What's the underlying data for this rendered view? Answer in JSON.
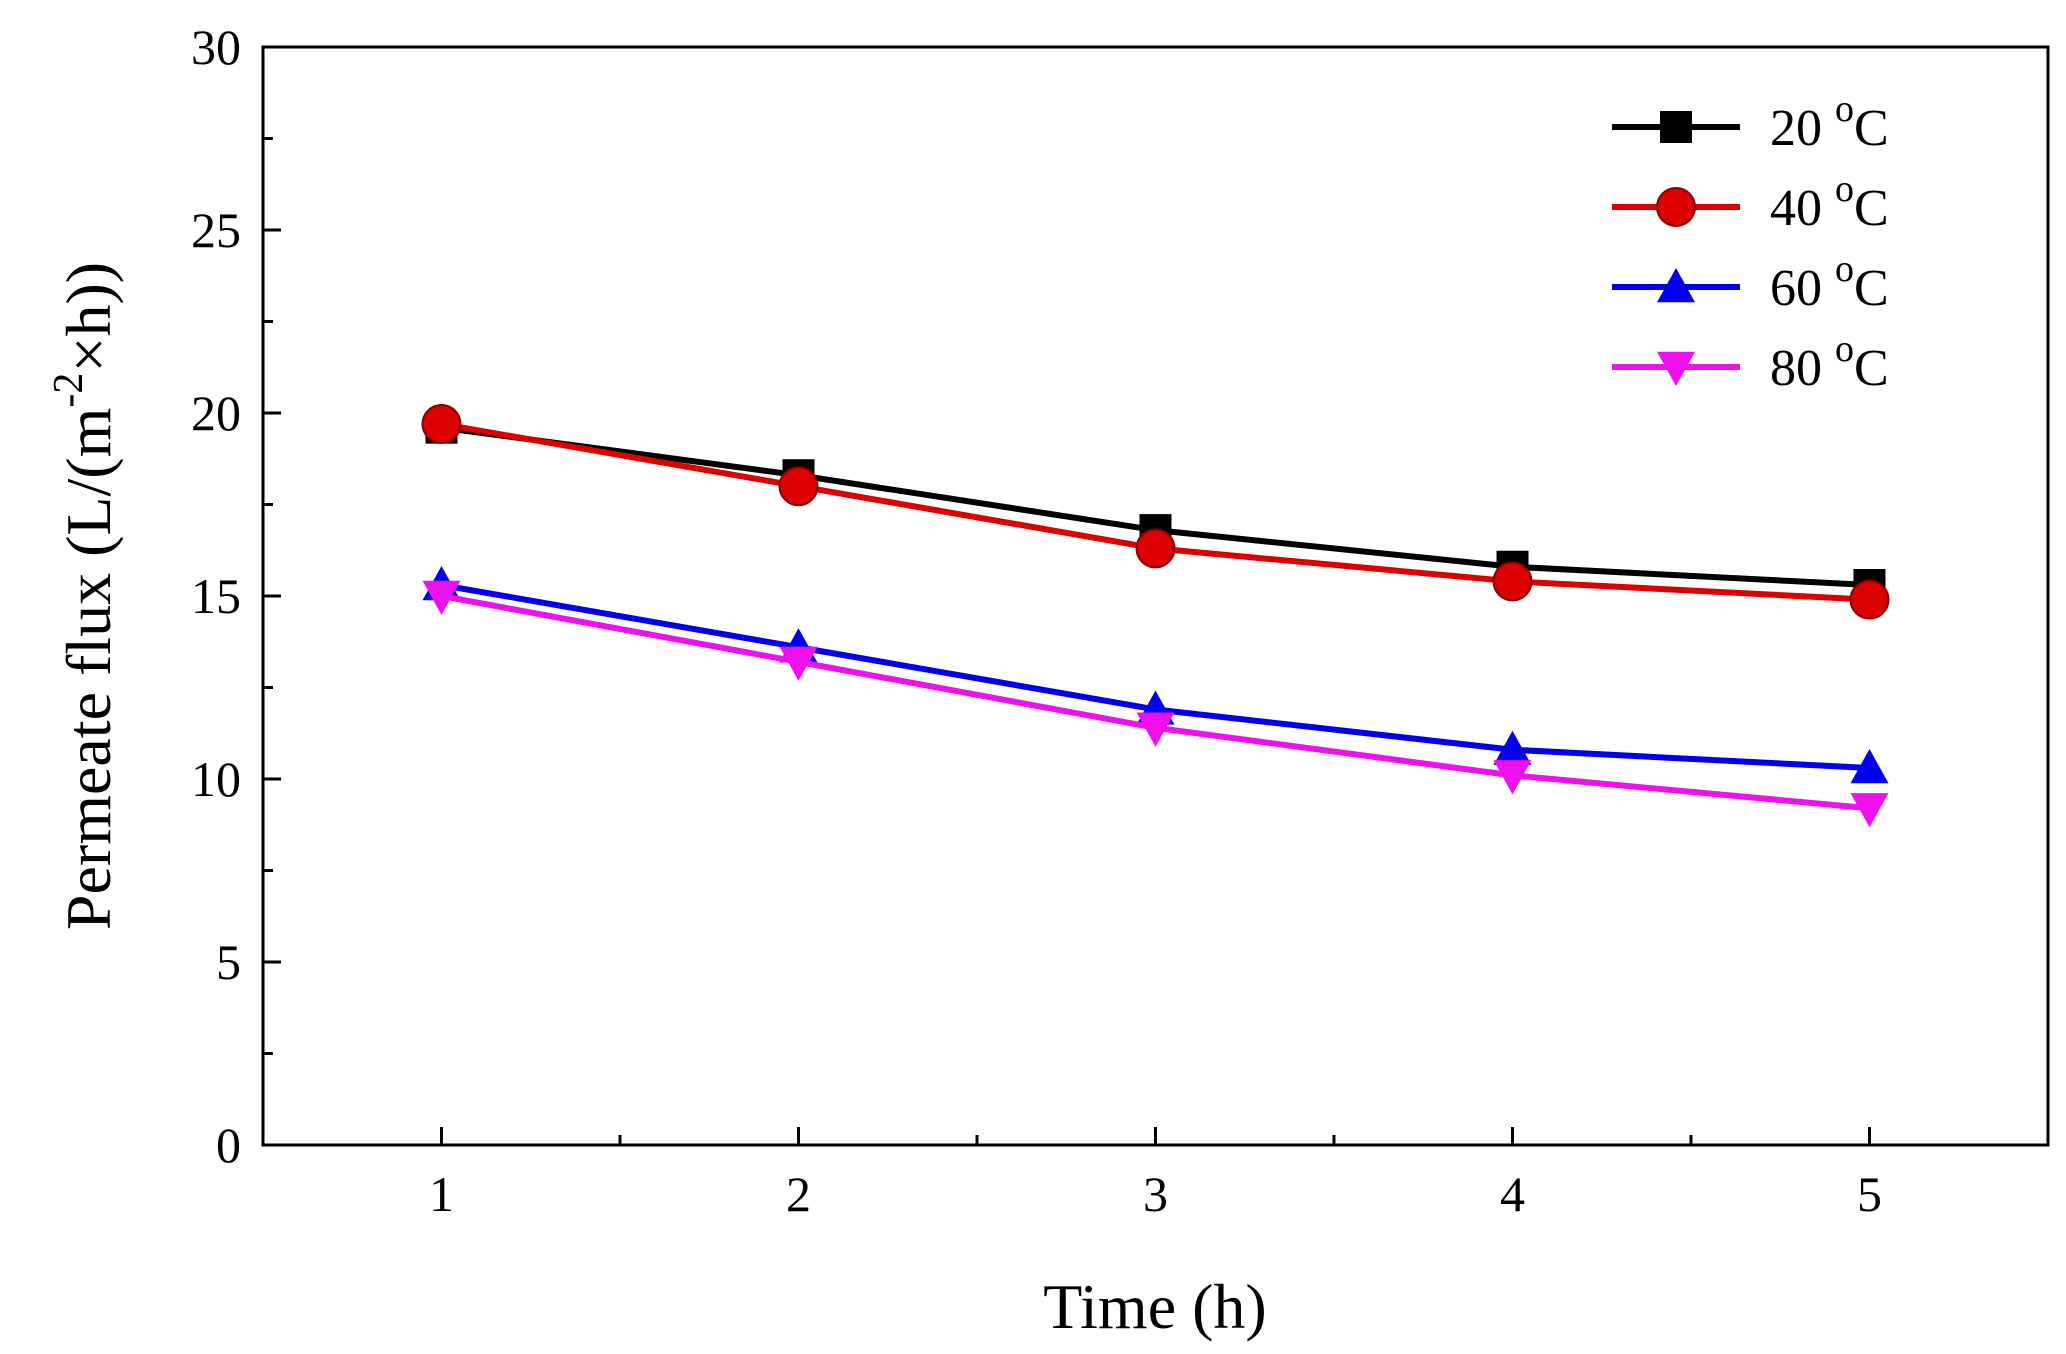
{
  "chart_data": {
    "type": "line",
    "title": "",
    "xlabel": "Time (h)",
    "ylabel": {
      "pre": "Permeate flux (L/(m",
      "sup": "-2",
      "post": "×h))"
    },
    "x": [
      1,
      2,
      3,
      4,
      5
    ],
    "xlim": [
      0.5,
      5.5
    ],
    "ylim": [
      0,
      30
    ],
    "xticks": [
      "1",
      "2",
      "3",
      "4",
      "5"
    ],
    "yticks": [
      "0",
      "5",
      "10",
      "15",
      "20",
      "25",
      "30"
    ],
    "grid": false,
    "legend_position": "top-right",
    "series": [
      {
        "name": "20",
        "unit_sup": "o",
        "unit": "C",
        "color": "#000000",
        "marker": "square",
        "values": [
          19.6,
          18.3,
          16.8,
          15.8,
          15.3
        ]
      },
      {
        "name": "40",
        "unit_sup": "o",
        "unit": "C",
        "color": "#dd0000",
        "marker": "circle",
        "values": [
          19.7,
          18.0,
          16.3,
          15.4,
          14.9
        ]
      },
      {
        "name": "60",
        "unit_sup": "o",
        "unit": "C",
        "color": "#0000ee",
        "marker": "triangle-up",
        "values": [
          15.3,
          13.6,
          11.9,
          10.8,
          10.3
        ]
      },
      {
        "name": "80",
        "unit_sup": "o",
        "unit": "C",
        "color": "#ee11ee",
        "marker": "triangle-down",
        "values": [
          15.0,
          13.2,
          11.4,
          10.1,
          9.2
        ]
      }
    ]
  }
}
